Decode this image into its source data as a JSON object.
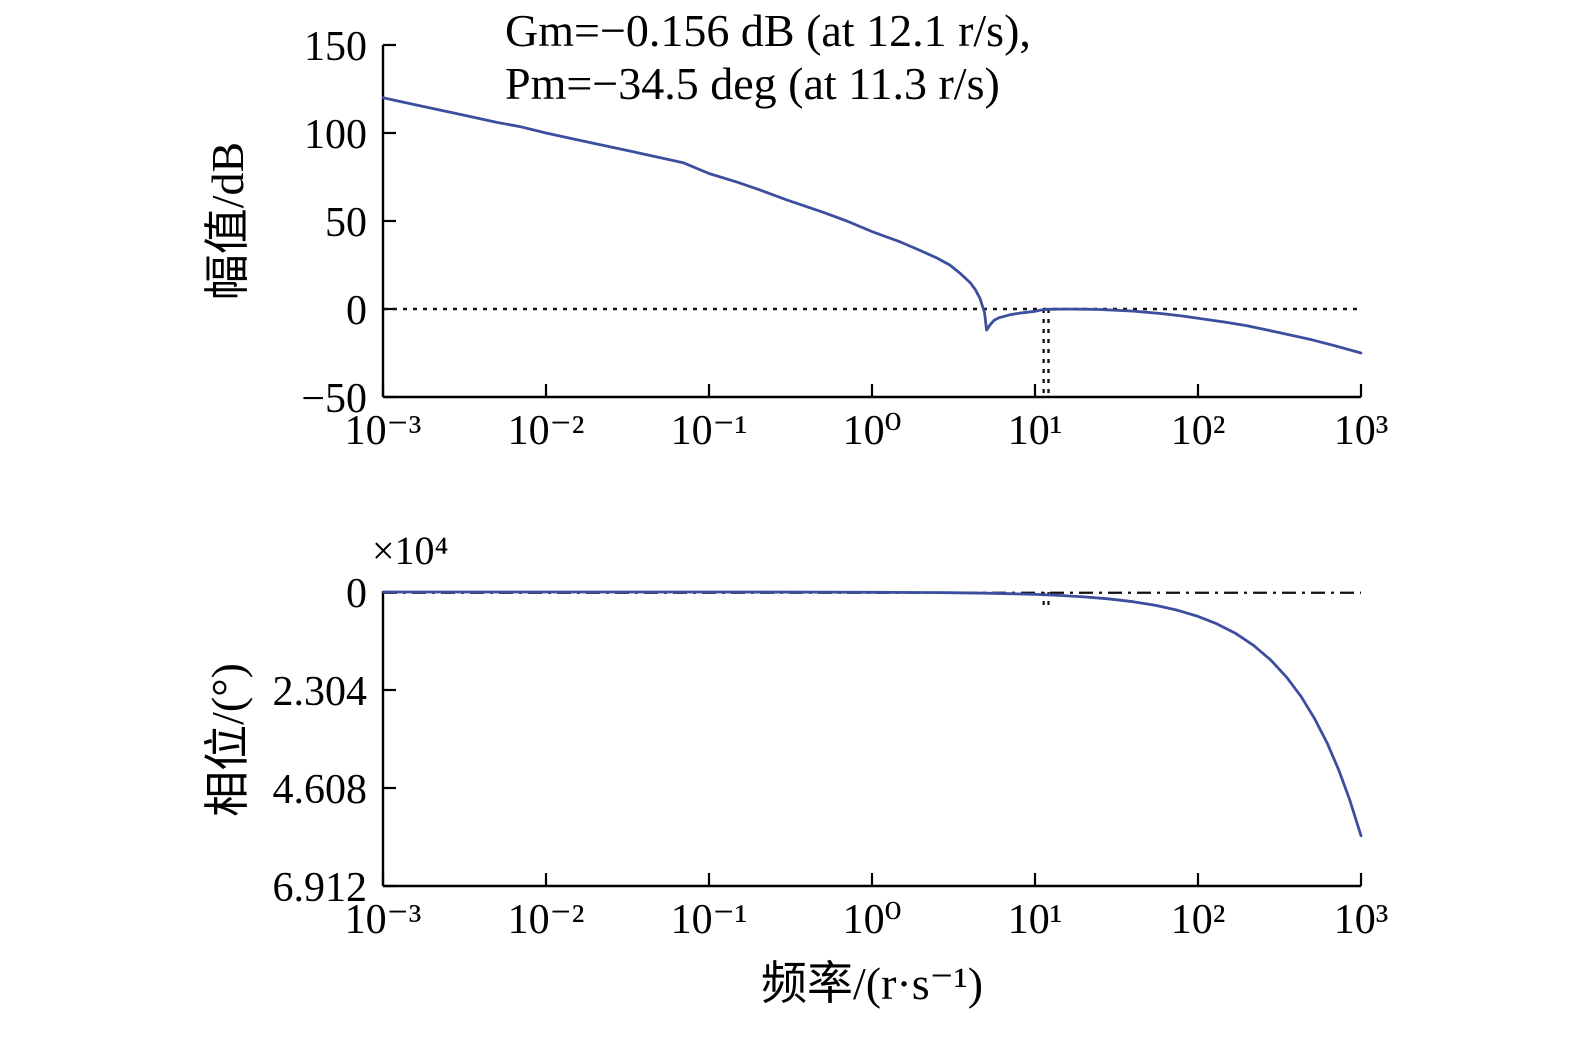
{
  "figure": {
    "bg_color": "#ffffff",
    "title_line1": "Gm=−0.156 dB (at 12.1 r/s),",
    "title_line2": "Pm=−34.5 deg (at 11.3 r/s)",
    "gain_margin_dB": -0.156,
    "gain_crossover_rs": 12.1,
    "phase_margin_deg": -34.5,
    "phase_crossover_rs": 11.3
  },
  "chart_data": [
    {
      "type": "line",
      "name": "magnitude",
      "ylabel": "幅值/dB",
      "xscale": "log",
      "xlim": [
        0.001,
        1000
      ],
      "ylim": [
        -50,
        150
      ],
      "grid": false,
      "xtick_labels": [
        "10⁻³",
        "10⁻²",
        "10⁻¹",
        "10⁰",
        "10¹",
        "10²",
        "10³"
      ],
      "xtick_values": [
        0.001,
        0.01,
        0.1,
        1,
        10,
        100,
        1000
      ],
      "ytick_labels": [
        "150",
        "100",
        "50",
        "0",
        "−50"
      ],
      "ytick_values": [
        150,
        100,
        50,
        0,
        -50
      ],
      "h_reference_dB": 0,
      "v_reference_freqs": [
        11.3,
        12.1
      ],
      "line_color": "#3c4f9e",
      "reference_color": "#111111",
      "series": [
        {
          "name": "magnitude_dB",
          "x": [
            0.001,
            0.0015,
            0.002,
            0.003,
            0.005,
            0.007,
            0.01,
            0.015,
            0.02,
            0.03,
            0.05,
            0.07,
            0.1,
            0.15,
            0.2,
            0.3,
            0.5,
            0.7,
            1,
            1.5,
            2,
            2.5,
            3,
            3.5,
            4,
            4.3,
            4.6,
            4.9,
            5.05,
            5.3,
            5.6,
            6,
            7,
            8,
            9,
            10,
            11,
            12.1,
            13,
            15,
            17,
            20,
            25,
            30,
            40,
            60,
            80,
            100,
            150,
            200,
            300,
            500,
            700,
            1000
          ],
          "y": [
            120,
            116.5,
            114,
            110.5,
            106,
            103.5,
            100,
            96.5,
            94,
            90.5,
            86,
            83,
            77,
            72,
            68,
            62,
            55,
            50,
            44,
            38,
            33,
            29,
            25,
            20,
            15,
            11,
            6,
            -2,
            -12,
            -9,
            -6.5,
            -5,
            -3.3,
            -2.4,
            -1.8,
            -1.3,
            -0.5,
            -0.16,
            -0.1,
            -0.05,
            -0.05,
            -0.1,
            -0.3,
            -0.6,
            -1.2,
            -2.6,
            -4,
            -5.2,
            -7.6,
            -9.5,
            -13,
            -17.5,
            -21,
            -25
          ]
        }
      ]
    },
    {
      "type": "line",
      "name": "phase",
      "ylabel": "相位/(°)",
      "xlabel": "频率/(r·s⁻¹)",
      "scale_label": "×10⁴",
      "y_unit": "1e4 deg",
      "xscale": "log",
      "xlim": [
        0.001,
        1000
      ],
      "ylim_e4": [
        -6.912,
        0
      ],
      "grid": false,
      "xtick_labels": [
        "10⁻³",
        "10⁻²",
        "10⁻¹",
        "10⁰",
        "10¹",
        "10²",
        "10³"
      ],
      "xtick_values": [
        0.001,
        0.01,
        0.1,
        1,
        10,
        100,
        1000
      ],
      "ytick_labels": [
        "0",
        "2.304",
        "4.608",
        "6.912"
      ],
      "ytick_values_e4": [
        0,
        -2.304,
        -4.608,
        -6.912
      ],
      "h_reference_deg": -180,
      "v_reference_freqs": [
        11.3,
        12.1
      ],
      "line_color": "#3c4f9e",
      "reference_color": "#111111",
      "series": [
        {
          "name": "phase_e4_deg",
          "x": [
            0.001,
            0.01,
            0.1,
            0.5,
            1,
            2,
            3,
            5,
            7,
            10,
            14,
            20,
            28,
            40,
            55,
            75,
            100,
            130,
            170,
            220,
            280,
            350,
            430,
            520,
            620,
            730,
            850,
            1000
          ],
          "y": [
            0,
            0,
            -0.001,
            -0.003,
            -0.006,
            -0.011,
            -0.017,
            -0.029,
            -0.04,
            -0.057,
            -0.08,
            -0.115,
            -0.16,
            -0.229,
            -0.315,
            -0.43,
            -0.573,
            -0.745,
            -0.974,
            -1.261,
            -1.604,
            -2.006,
            -2.464,
            -2.98,
            -3.553,
            -4.183,
            -4.871,
            -5.73
          ]
        }
      ]
    }
  ]
}
